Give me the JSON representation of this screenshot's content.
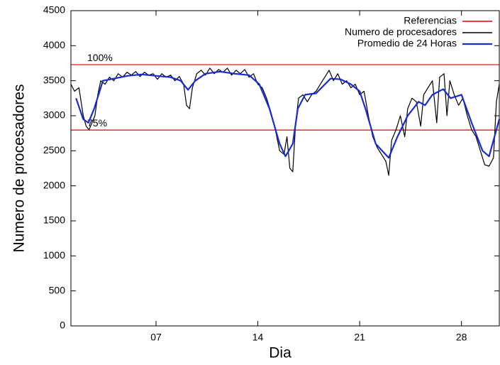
{
  "chart_data": {
    "type": "line",
    "xlabel": "Dia",
    "ylabel": "Numero de procesadores",
    "xlim": [
      1.15,
      30.6
    ],
    "ylim": [
      0,
      4500
    ],
    "xticks": [
      {
        "value": 7,
        "label": "07"
      },
      14,
      21,
      28
    ],
    "yticks": [
      0,
      500,
      1000,
      1500,
      2000,
      2500,
      3000,
      3500,
      4000,
      4500
    ],
    "legend": "top-right",
    "reference_lines": {
      "name": "Referencias",
      "color": "#e00000",
      "values": [
        3729,
        2796
      ],
      "labels": [
        "100%",
        "75%"
      ]
    },
    "series": [
      {
        "name": "Numero de procesadores",
        "color": "#000000",
        "x": [
          1.15,
          1.4,
          1.7,
          2.0,
          2.2,
          2.4,
          2.6,
          2.8,
          3.0,
          3.2,
          3.5,
          3.8,
          4.1,
          4.4,
          4.7,
          5.0,
          5.3,
          5.6,
          5.9,
          6.2,
          6.5,
          6.8,
          7.1,
          7.4,
          7.7,
          8.0,
          8.3,
          8.6,
          8.9,
          9.1,
          9.3,
          9.5,
          9.8,
          10.1,
          10.4,
          10.7,
          11.0,
          11.3,
          11.6,
          11.9,
          12.2,
          12.5,
          12.8,
          13.1,
          13.4,
          13.7,
          14.0,
          14.3,
          14.6,
          14.9,
          15.2,
          15.5,
          15.8,
          16.0,
          16.2,
          16.4,
          16.6,
          16.8,
          17.1,
          17.4,
          17.7,
          18.0,
          18.3,
          18.6,
          18.9,
          19.2,
          19.5,
          19.8,
          20.1,
          20.4,
          20.7,
          21.0,
          21.3,
          21.6,
          21.9,
          22.2,
          22.5,
          22.8,
          23.0,
          23.2,
          23.5,
          23.8,
          24.1,
          24.3,
          24.6,
          24.9,
          25.2,
          25.4,
          25.7,
          26.0,
          26.3,
          26.5,
          26.8,
          27.0,
          27.2,
          27.5,
          27.8,
          28.1,
          28.4,
          28.7,
          29.0,
          29.3,
          29.6,
          29.9,
          30.2,
          30.4,
          30.6
        ],
        "values": [
          3450,
          3350,
          3400,
          3000,
          2850,
          2800,
          2900,
          3000,
          3300,
          3500,
          3450,
          3550,
          3500,
          3600,
          3550,
          3620,
          3580,
          3630,
          3560,
          3620,
          3580,
          3600,
          3520,
          3600,
          3550,
          3580,
          3500,
          3560,
          3450,
          3150,
          3100,
          3400,
          3600,
          3650,
          3580,
          3680,
          3600,
          3660,
          3620,
          3680,
          3580,
          3650,
          3600,
          3660,
          3550,
          3600,
          3450,
          3400,
          3250,
          3050,
          2800,
          2500,
          2450,
          2700,
          2250,
          2200,
          2900,
          3250,
          3300,
          3200,
          3300,
          3350,
          3450,
          3550,
          3650,
          3500,
          3600,
          3450,
          3500,
          3400,
          3450,
          3300,
          3350,
          3000,
          2700,
          2550,
          2450,
          2350,
          2150,
          2650,
          2800,
          3000,
          2700,
          3100,
          3250,
          3200,
          2850,
          3300,
          3400,
          3500,
          2900,
          3550,
          3600,
          3000,
          3500,
          3300,
          3150,
          3250,
          3000,
          2800,
          2700,
          2500,
          2300,
          2280,
          2400,
          3200,
          3450
        ]
      },
      {
        "name": "Promedio de 24 Horas",
        "color": "#1a2bd0",
        "x": [
          1.5,
          2.0,
          2.35,
          2.75,
          3.35,
          4.1,
          5.05,
          6.0,
          7.0,
          8.0,
          8.7,
          9.2,
          9.7,
          10.4,
          11.4,
          12.4,
          13.4,
          14.1,
          14.8,
          15.5,
          15.9,
          16.4,
          16.75,
          17.25,
          18.0,
          19.0,
          19.7,
          20.4,
          21.0,
          21.4,
          22.1,
          23.0,
          23.6,
          24.3,
          25.05,
          25.5,
          26.0,
          26.75,
          27.25,
          28.0,
          28.7,
          29.45,
          29.9,
          30.6
        ],
        "values": [
          3250,
          2950,
          2900,
          3100,
          3500,
          3530,
          3570,
          3590,
          3570,
          3550,
          3500,
          3370,
          3500,
          3600,
          3630,
          3600,
          3580,
          3450,
          3100,
          2600,
          2420,
          2600,
          3100,
          3300,
          3320,
          3530,
          3520,
          3450,
          3350,
          3100,
          2600,
          2400,
          2700,
          3000,
          3200,
          3150,
          3300,
          3380,
          3250,
          3300,
          2900,
          2500,
          2420,
          2950
        ]
      }
    ]
  }
}
